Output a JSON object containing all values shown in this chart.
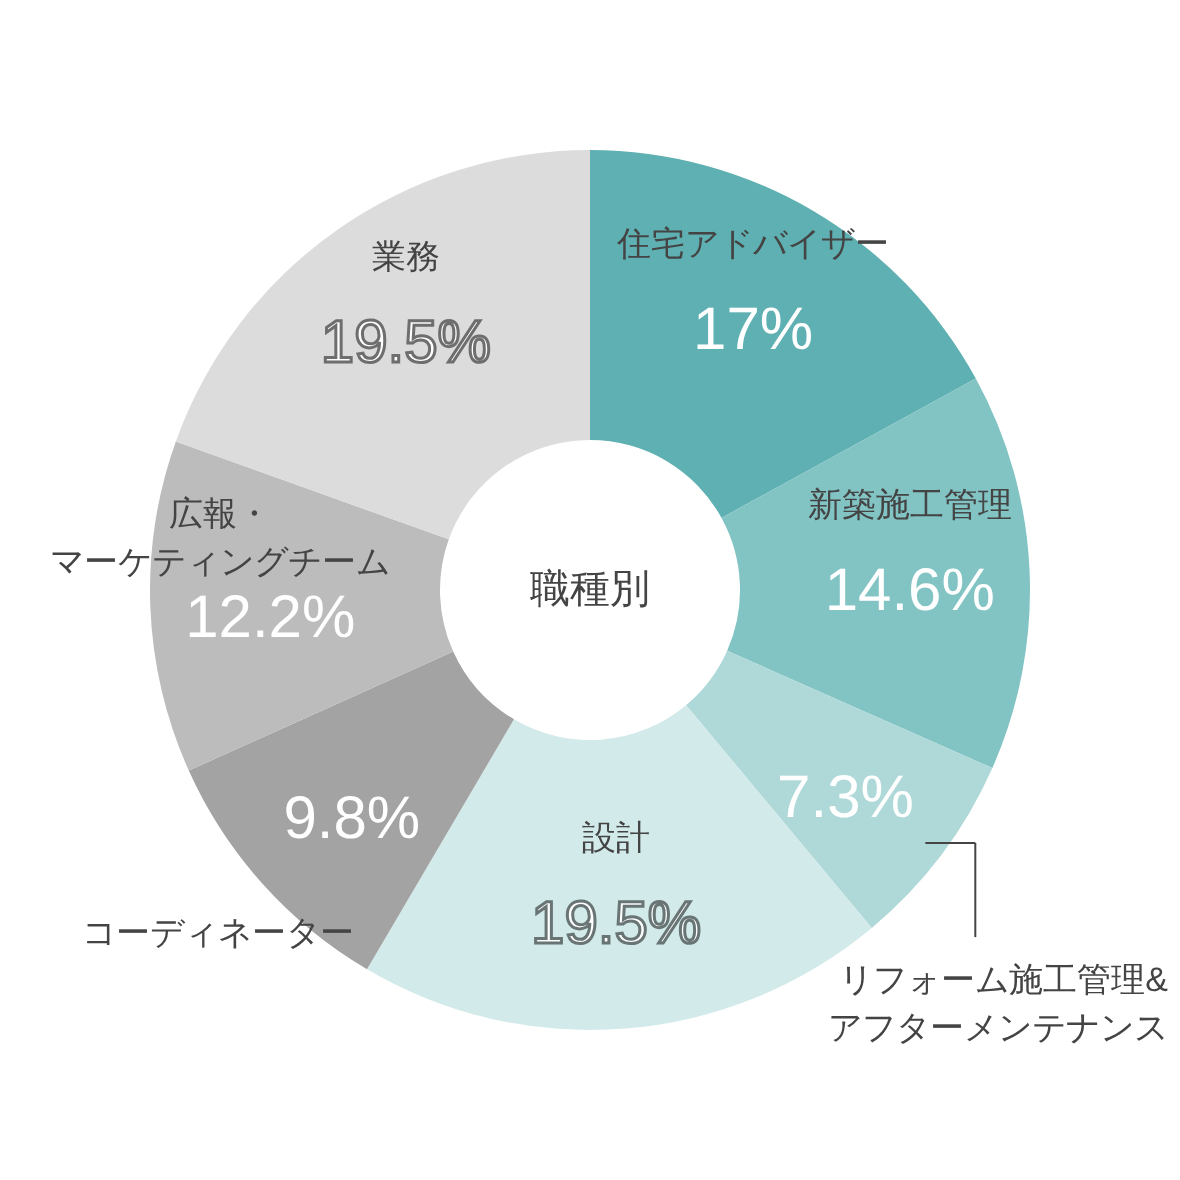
{
  "chart_data": {
    "type": "donut",
    "title": "職種別",
    "categories": [
      "住宅アドバイザー",
      "新築施工管理",
      "リフォーム施工管理&アフターメンテナンス",
      "設計",
      "コーディネーター",
      "広報・マーケティングチーム",
      "業務"
    ],
    "values": [
      17,
      14.6,
      7.3,
      19.5,
      9.8,
      12.2,
      19.5
    ],
    "value_labels": [
      "17%",
      "14.6%",
      "7.3%",
      "19.5%",
      "9.8%",
      "12.2%",
      "19.5%"
    ],
    "colors": [
      "#5fb0b2",
      "#82c3c4",
      "#afd9d8",
      "#d3eaea",
      "#a3a3a3",
      "#bcbcbc",
      "#dcdcdc"
    ]
  }
}
